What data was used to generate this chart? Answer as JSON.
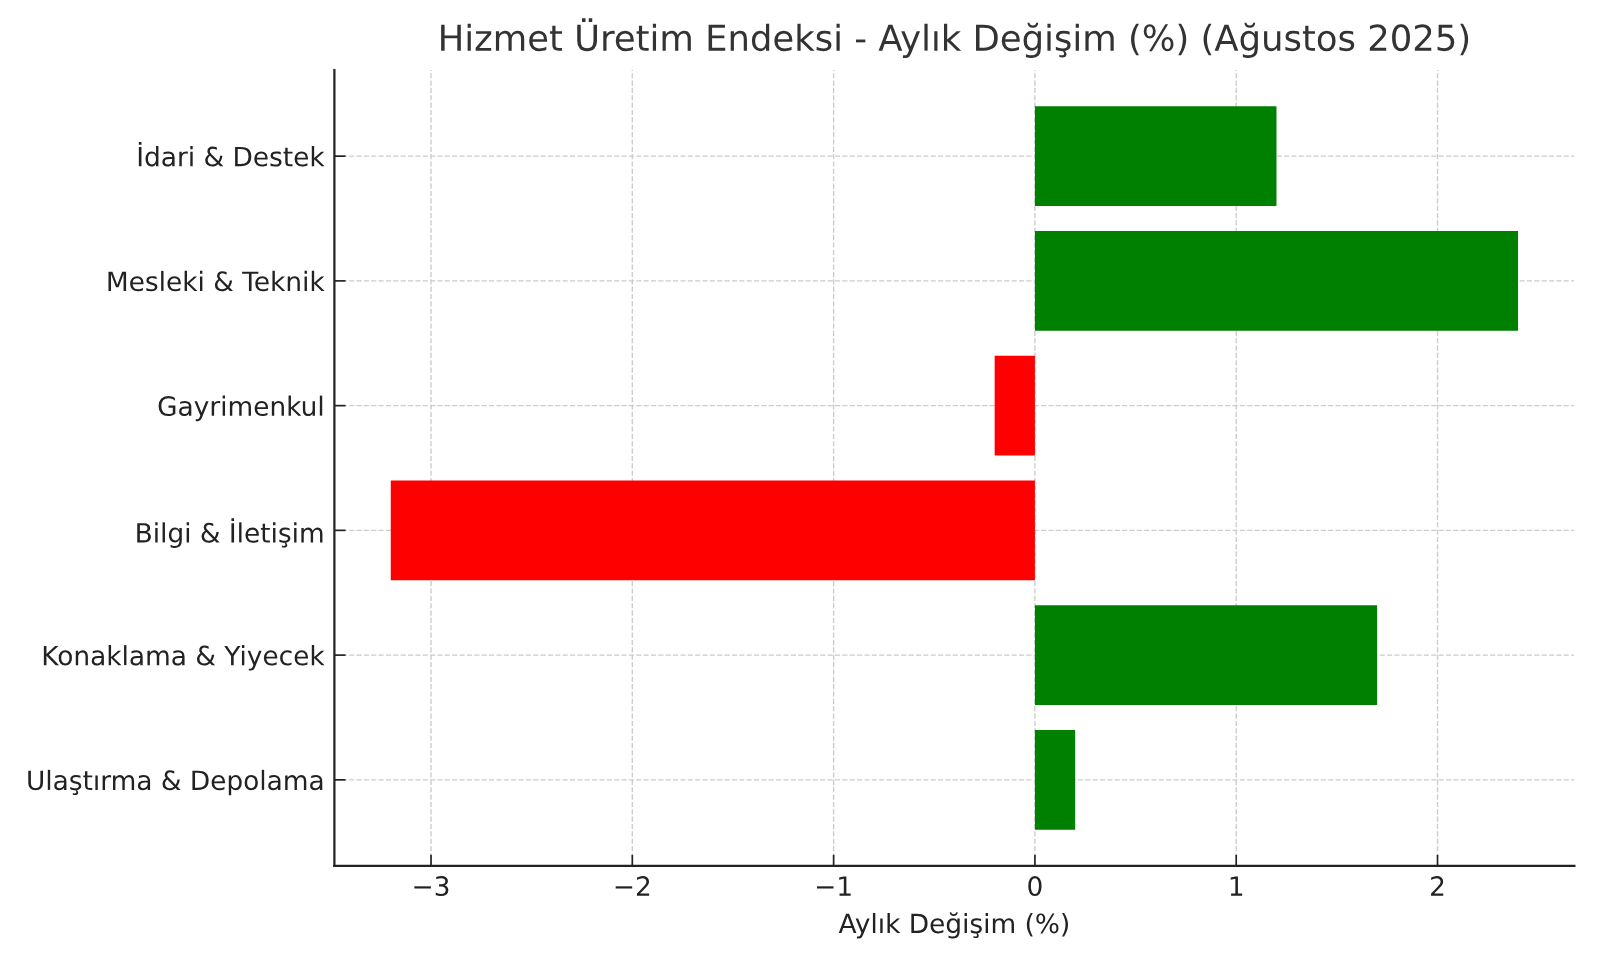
{
  "chart_data": {
    "type": "bar",
    "orientation": "horizontal",
    "title": "Hizmet Üretim Endeksi - Aylık Değişim (%) (Ağustos 2025)",
    "xlabel": "Aylık Değişim (%)",
    "categories": [
      "İdari & Destek",
      "Mesleki & Teknik",
      "Gayrimenkul",
      "Bilgi & İletişim",
      "Konaklama & Yiyecek",
      "Ulaştırma & Depolama"
    ],
    "values": [
      1.2,
      2.4,
      -0.2,
      -3.2,
      1.7,
      0.2
    ],
    "colors": [
      "#008000",
      "#008000",
      "#ff0000",
      "#ff0000",
      "#008000",
      "#008000"
    ],
    "xlim": [
      -3.48,
      2.68
    ],
    "xticks": [
      {
        "value": -3,
        "label": "−3"
      },
      {
        "value": -2,
        "label": "−2"
      },
      {
        "value": -1,
        "label": "−1"
      },
      0,
      1,
      2
    ],
    "grid": true
  }
}
